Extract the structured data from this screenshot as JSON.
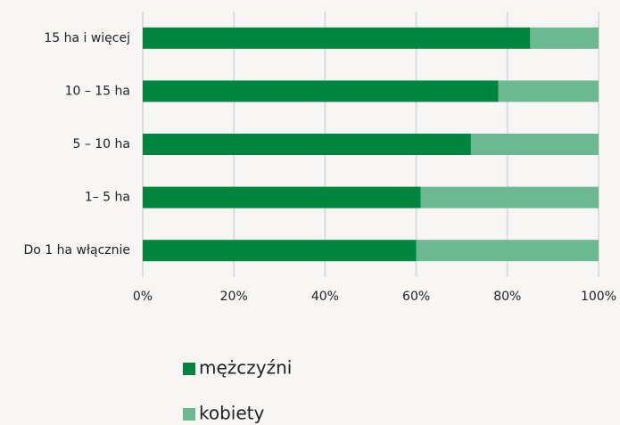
{
  "chart_data": {
    "type": "stacked-bar-horizontal",
    "categories": [
      "15 ha i więcej",
      "10 – 15 ha",
      "5 – 10 ha",
      "1– 5 ha",
      "Do 1 ha włącznie"
    ],
    "series": [
      {
        "name": "mężczyźni",
        "color": "#00853f",
        "values": [
          85,
          78,
          72,
          61,
          60
        ]
      },
      {
        "name": "kobiety",
        "color": "#6bb990",
        "values": [
          15,
          22,
          28,
          39,
          40
        ]
      }
    ],
    "xlim": [
      0,
      100
    ],
    "xticks": [
      {
        "value": 0,
        "label": "0%"
      },
      {
        "value": 20,
        "label": "20%"
      },
      {
        "value": 40,
        "label": "40%"
      },
      {
        "value": 60,
        "label": "60%"
      },
      {
        "value": 80,
        "label": "80%"
      },
      {
        "value": 100,
        "label": "100%"
      }
    ],
    "grid": true
  }
}
